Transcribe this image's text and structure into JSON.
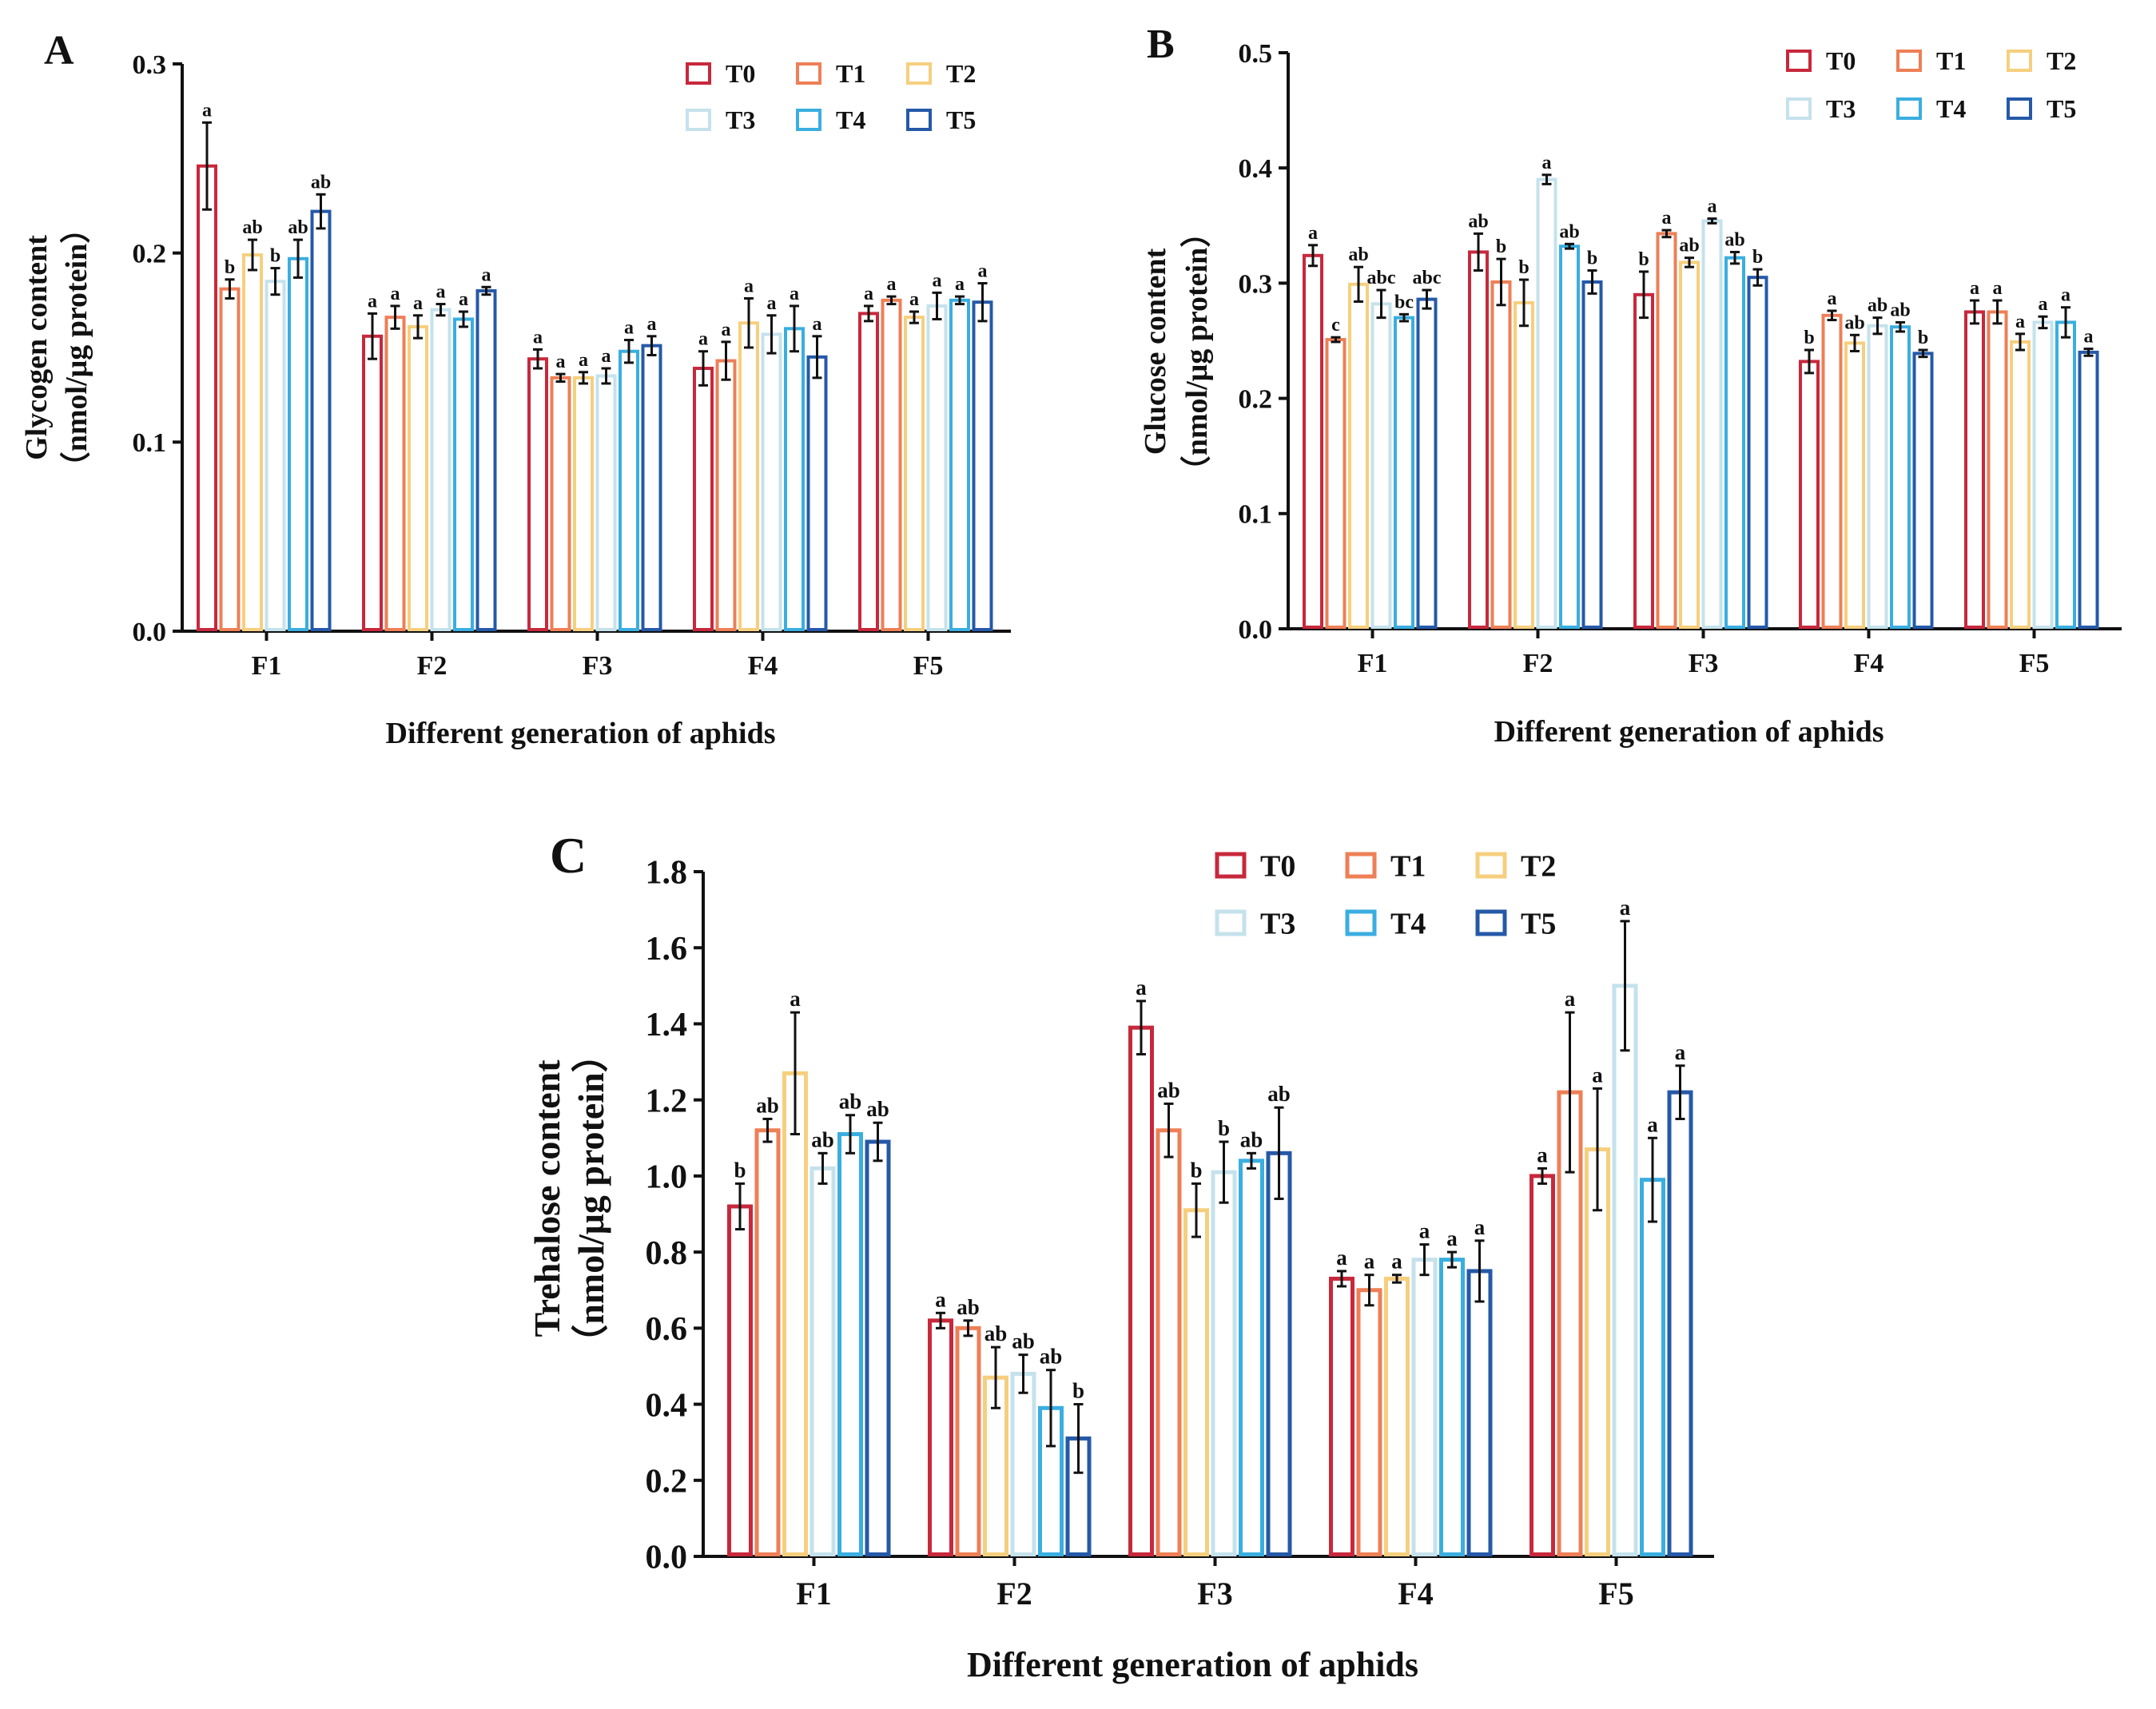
{
  "series_colors": {
    "T0": "#c8283c",
    "T1": "#ee7f56",
    "T2": "#f6cf7e",
    "T3": "#c5e2ec",
    "T4": "#3aaee0",
    "T5": "#2559a8"
  },
  "chart_data": [
    {
      "panel": "A",
      "type": "bar",
      "ylabel_line1": "Glycogen content",
      "ylabel_line2": "（nmol/μg protein）",
      "xlabel": "Different generation of aphids",
      "categories": [
        "F1",
        "F2",
        "F3",
        "F4",
        "F5"
      ],
      "ylim": [
        0,
        0.3
      ],
      "yticks": [
        0.0,
        0.1,
        0.2,
        0.3
      ],
      "ytick_labels": [
        "0.0",
        "0.1",
        "0.2",
        "0.3"
      ],
      "series": [
        {
          "name": "T0",
          "values": [
            0.246,
            0.156,
            0.144,
            0.139,
            0.168
          ],
          "errors": [
            0.023,
            0.012,
            0.005,
            0.009,
            0.004
          ],
          "letters": [
            "a",
            "a",
            "a",
            "a",
            "a"
          ]
        },
        {
          "name": "T1",
          "values": [
            0.181,
            0.166,
            0.134,
            0.143,
            0.175
          ],
          "errors": [
            0.005,
            0.006,
            0.002,
            0.01,
            0.002
          ],
          "letters": [
            "b",
            "a",
            "a",
            "a",
            "a"
          ]
        },
        {
          "name": "T2",
          "values": [
            0.199,
            0.161,
            0.134,
            0.163,
            0.166
          ],
          "errors": [
            0.008,
            0.006,
            0.003,
            0.013,
            0.003
          ],
          "letters": [
            "ab",
            "a",
            "a",
            "a",
            "a"
          ]
        },
        {
          "name": "T3",
          "values": [
            0.185,
            0.17,
            0.135,
            0.157,
            0.172
          ],
          "errors": [
            0.007,
            0.003,
            0.004,
            0.01,
            0.007
          ],
          "letters": [
            "b",
            "a",
            "a",
            "a",
            "a"
          ]
        },
        {
          "name": "T4",
          "values": [
            0.197,
            0.165,
            0.148,
            0.16,
            0.175
          ],
          "errors": [
            0.01,
            0.004,
            0.006,
            0.012,
            0.002
          ],
          "letters": [
            "ab",
            "a",
            "a",
            "a",
            "a"
          ]
        },
        {
          "name": "T5",
          "values": [
            0.222,
            0.18,
            0.151,
            0.145,
            0.174
          ],
          "errors": [
            0.009,
            0.002,
            0.005,
            0.011,
            0.01
          ],
          "letters": [
            "ab",
            "a",
            "a",
            "a",
            "a"
          ]
        }
      ]
    },
    {
      "panel": "B",
      "type": "bar",
      "ylabel_line1": "Glucose content",
      "ylabel_line2": "（nmol/μg protein）",
      "xlabel": "Different generation of aphids",
      "categories": [
        "F1",
        "F2",
        "F3",
        "F4",
        "F5"
      ],
      "ylim": [
        0,
        0.5
      ],
      "yticks": [
        0.0,
        0.1,
        0.2,
        0.3,
        0.4,
        0.5
      ],
      "ytick_labels": [
        "0.0",
        "0.1",
        "0.2",
        "0.3",
        "0.4",
        "0.5"
      ],
      "series": [
        {
          "name": "T0",
          "values": [
            0.324,
            0.327,
            0.29,
            0.232,
            0.275
          ],
          "errors": [
            0.009,
            0.016,
            0.02,
            0.01,
            0.01
          ],
          "letters": [
            "a",
            "ab",
            "b",
            "b",
            "a"
          ]
        },
        {
          "name": "T1",
          "values": [
            0.251,
            0.301,
            0.343,
            0.272,
            0.275
          ],
          "errors": [
            0.002,
            0.02,
            0.003,
            0.004,
            0.01
          ],
          "letters": [
            "c",
            "b",
            "a",
            "a",
            "a"
          ]
        },
        {
          "name": "T2",
          "values": [
            0.299,
            0.283,
            0.318,
            0.248,
            0.249
          ],
          "errors": [
            0.015,
            0.02,
            0.004,
            0.007,
            0.007
          ],
          "letters": [
            "ab",
            "b",
            "ab",
            "ab",
            "a"
          ]
        },
        {
          "name": "T3",
          "values": [
            0.282,
            0.39,
            0.354,
            0.263,
            0.266
          ],
          "errors": [
            0.012,
            0.004,
            0.002,
            0.007,
            0.005
          ],
          "letters": [
            "abc",
            "a",
            "a",
            "ab",
            "a"
          ]
        },
        {
          "name": "T4",
          "values": [
            0.27,
            0.332,
            0.322,
            0.262,
            0.266
          ],
          "errors": [
            0.003,
            0.002,
            0.005,
            0.004,
            0.013
          ],
          "letters": [
            "bc",
            "ab",
            "ab",
            "ab",
            "a"
          ]
        },
        {
          "name": "T5",
          "values": [
            0.286,
            0.301,
            0.305,
            0.239,
            0.24
          ],
          "errors": [
            0.008,
            0.01,
            0.007,
            0.003,
            0.003
          ],
          "letters": [
            "abc",
            "b",
            "b",
            "b",
            "a"
          ]
        }
      ]
    },
    {
      "panel": "C",
      "type": "bar",
      "ylabel_line1": "Trehalose content",
      "ylabel_line2": "（nmol/μg protein）",
      "xlabel": "Different generation of aphids",
      "categories": [
        "F1",
        "F2",
        "F3",
        "F4",
        "F5"
      ],
      "ylim": [
        0,
        1.8
      ],
      "yticks": [
        0.0,
        0.2,
        0.4,
        0.6,
        0.8,
        1.0,
        1.2,
        1.4,
        1.6,
        1.8
      ],
      "ytick_labels": [
        "0.0",
        "0.2",
        "0.4",
        "0.6",
        "0.8",
        "1.0",
        "1.2",
        "1.4",
        "1.6",
        "1.8"
      ],
      "series": [
        {
          "name": "T0",
          "values": [
            0.92,
            0.62,
            1.39,
            0.73,
            1.0
          ],
          "errors": [
            0.06,
            0.02,
            0.07,
            0.02,
            0.02
          ],
          "letters": [
            "b",
            "a",
            "a",
            "a",
            "a"
          ]
        },
        {
          "name": "T1",
          "values": [
            1.12,
            0.6,
            1.12,
            0.7,
            1.22
          ],
          "errors": [
            0.03,
            0.02,
            0.07,
            0.04,
            0.21
          ],
          "letters": [
            "ab",
            "ab",
            "ab",
            "a",
            "a"
          ]
        },
        {
          "name": "T2",
          "values": [
            1.27,
            0.47,
            0.91,
            0.73,
            1.07
          ],
          "errors": [
            0.16,
            0.08,
            0.07,
            0.01,
            0.16
          ],
          "letters": [
            "a",
            "ab",
            "b",
            "a",
            "a"
          ]
        },
        {
          "name": "T3",
          "values": [
            1.02,
            0.48,
            1.01,
            0.78,
            1.5
          ],
          "errors": [
            0.04,
            0.05,
            0.08,
            0.04,
            0.17
          ],
          "letters": [
            "ab",
            "ab",
            "b",
            "a",
            "a"
          ]
        },
        {
          "name": "T4",
          "values": [
            1.11,
            0.39,
            1.04,
            0.78,
            0.99
          ],
          "errors": [
            0.05,
            0.1,
            0.02,
            0.02,
            0.11
          ],
          "letters": [
            "ab",
            "ab",
            "ab",
            "a",
            "a"
          ]
        },
        {
          "name": "T5",
          "values": [
            1.09,
            0.31,
            1.06,
            0.75,
            1.22
          ],
          "errors": [
            0.05,
            0.09,
            0.12,
            0.08,
            0.07
          ],
          "letters": [
            "ab",
            "b",
            "ab",
            "a",
            "a"
          ]
        }
      ]
    }
  ]
}
